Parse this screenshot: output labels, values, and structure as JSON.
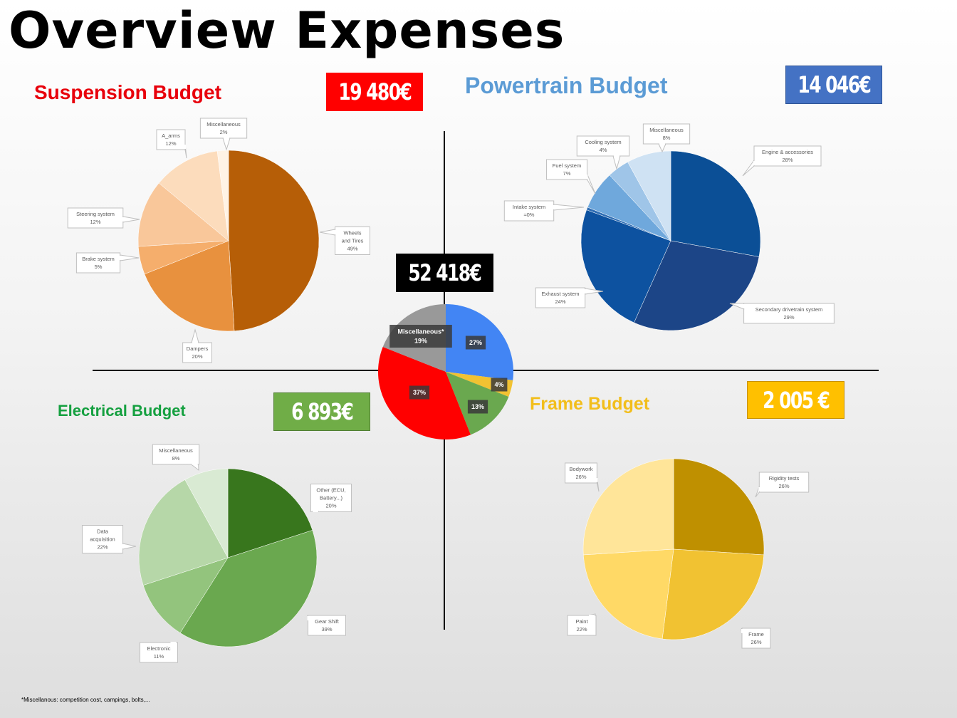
{
  "title": "Overview Expenses",
  "footnote": "*Miscellanous:  competition  cost, campings, bolts,...",
  "grand_total": "52 418€",
  "sections": {
    "suspension": {
      "title": "Suspension Budget",
      "total": "19 480€"
    },
    "powertrain": {
      "title": "Powertrain Budget",
      "total": "14 046€"
    },
    "electrical": {
      "title": "Electrical  Budget",
      "total": "6 893€"
    },
    "frame": {
      "title": "Frame Budget",
      "total": "2 005 €"
    }
  },
  "colors": {
    "suspension": "#c55a11",
    "powertrain": "#1f4e79",
    "electrical": "#548235",
    "frame": "#bf9000",
    "overview_red": "#ff0000",
    "overview_blue": "#4285f4"
  },
  "chart_data": [
    {
      "id": "suspension",
      "type": "pie",
      "categories": [
        "Wheels and Tires",
        "Dampers",
        "Brake system",
        "Steering  system",
        "A_arms",
        "Miscellaneous"
      ],
      "label_lines": [
        [
          "Wheels",
          "and Tires",
          "49%"
        ],
        [
          "Dampers",
          "20%"
        ],
        [
          "Brake system",
          "5%"
        ],
        [
          "Steering  system",
          "12%"
        ],
        [
          "A_arms",
          "12%"
        ],
        [
          "Miscellaneous",
          "2%"
        ]
      ],
      "values": [
        49,
        20,
        5,
        12,
        12,
        2
      ],
      "colors": [
        "#b65e07",
        "#e8913e",
        "#f5ae6c",
        "#f9c79a",
        "#fcdcbc",
        "#fff3e5"
      ]
    },
    {
      "id": "powertrain",
      "type": "pie",
      "categories": [
        "Engine & accessories",
        "Secondary drivetrain system",
        "Exhaust system",
        "Intake system",
        "Fuel system",
        "Cooling system",
        "Miscellaneous"
      ],
      "label_lines": [
        [
          "Engine & accessories",
          "28%"
        ],
        [
          "Secondary  drivetrain system",
          "29%"
        ],
        [
          "Exhaust system",
          "24%"
        ],
        [
          "Intake  system",
          "≈0%"
        ],
        [
          "Fuel system",
          "7%"
        ],
        [
          "Cooling  system",
          "4%"
        ],
        [
          "Miscellaneous",
          "8%"
        ]
      ],
      "values": [
        28,
        29,
        24,
        0.5,
        7,
        4,
        8
      ],
      "colors": [
        "#0b4f96",
        "#1c4587",
        "#0d52a0",
        "#2e6db4",
        "#6fa8dc",
        "#9fc5e8",
        "#cfe2f3"
      ]
    },
    {
      "id": "electrical",
      "type": "pie",
      "categories": [
        "Other (ECU, Battery...)",
        "Gear Shift",
        "Electronic",
        "Data acquisition",
        "Miscellaneous"
      ],
      "label_lines": [
        [
          "Other (ECU,",
          "Battery...)",
          "20%"
        ],
        [
          "Gear Shift",
          "39%"
        ],
        [
          "Electronic",
          "11%"
        ],
        [
          "Data",
          "acquisition",
          "22%"
        ],
        [
          "Miscellaneous",
          "8%"
        ]
      ],
      "values": [
        20,
        39,
        11,
        22,
        8
      ],
      "colors": [
        "#38761d",
        "#6aa84f",
        "#93c47d",
        "#b6d7a8",
        "#d9ead3"
      ]
    },
    {
      "id": "frame",
      "type": "pie",
      "categories": [
        "Rigidity tests",
        "Frame",
        "Paint",
        "Bodywork"
      ],
      "label_lines": [
        [
          "Rigidity tests",
          "26%"
        ],
        [
          "Frame",
          "26%"
        ],
        [
          "Paint",
          "22%"
        ],
        [
          "Bodywork",
          "26%"
        ]
      ],
      "values": [
        26,
        26,
        22,
        26
      ],
      "colors": [
        "#bf9000",
        "#f1c232",
        "#ffd966",
        "#ffe599"
      ]
    },
    {
      "id": "overview",
      "type": "pie",
      "categories": [
        "Powertrain",
        "Frame",
        "Electrical",
        "Suspension",
        "Miscellaneous*"
      ],
      "label_lines": [
        [
          "27%"
        ],
        [
          "4%"
        ],
        [
          "13%"
        ],
        [
          "37%"
        ],
        [
          "Miscellaneous*",
          "19%"
        ]
      ],
      "values": [
        27,
        4,
        13,
        37,
        19
      ],
      "colors": [
        "#4285f4",
        "#f1c232",
        "#6aa84f",
        "#ff0000",
        "#999999"
      ]
    }
  ]
}
